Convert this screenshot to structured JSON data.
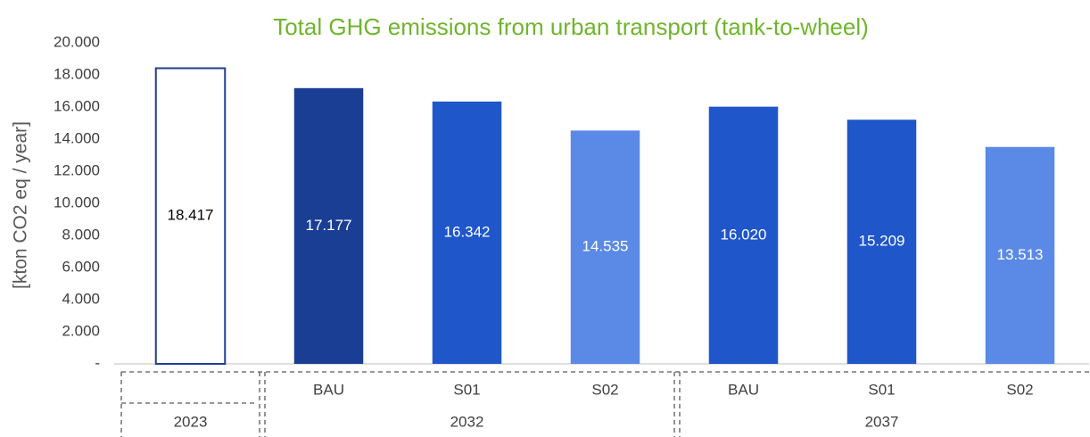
{
  "chart_data": {
    "type": "bar",
    "title": "Total GHG emissions from urban transport (tank-to-wheel)",
    "y_label": "[kton CO2 eq / year]",
    "categories": [
      null,
      "BAU",
      "S01",
      "S02",
      "BAU",
      "S01",
      "S02"
    ],
    "groups": [
      {
        "name": "2023",
        "size": 1
      },
      {
        "name": "2032",
        "size": 3
      },
      {
        "name": "2037",
        "size": 3
      }
    ],
    "values": [
      18417,
      17177,
      16342,
      14535,
      16020,
      15209,
      13513
    ],
    "value_labels": [
      "18.417",
      "17.177",
      "16.342",
      "14.535",
      "16.020",
      "15.209",
      "13.513"
    ],
    "colors": [
      "#ffffff",
      "#1a3e94",
      "#1f56c9",
      "#5b8ae6",
      "#1f56c9",
      "#1f56c9",
      "#5b8ae6"
    ],
    "edgecolor": "#1f3f8f",
    "ylim": [
      0,
      20000
    ],
    "yticks": [
      {
        "value": 0,
        "label": "-"
      },
      {
        "value": 2000,
        "label": "2.000"
      },
      {
        "value": 4000,
        "label": "4.000"
      },
      {
        "value": 6000,
        "label": "6.000"
      },
      {
        "value": 8000,
        "label": "8.000"
      },
      {
        "value": 10000,
        "label": "10.000"
      },
      {
        "value": 12000,
        "label": "12.000"
      },
      {
        "value": 14000,
        "label": "14.000"
      },
      {
        "value": 16000,
        "label": "16.000"
      },
      {
        "value": 18000,
        "label": "18.000"
      },
      {
        "value": 20000,
        "label": "20.000"
      }
    ],
    "grid": false
  }
}
